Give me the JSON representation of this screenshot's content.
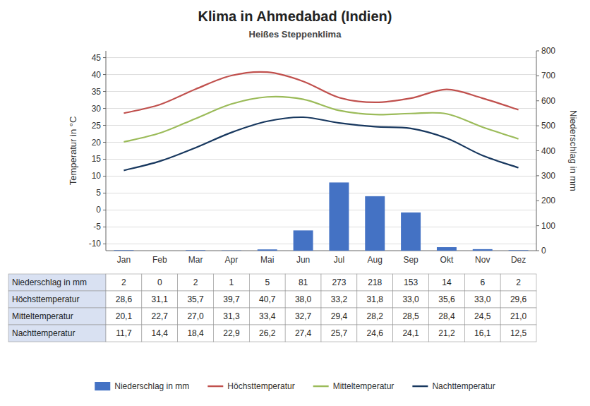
{
  "chart_data": {
    "type": "bar",
    "title": "Klima in Ahmedabad (Indien)",
    "subtitle": "Heißes Steppenklima",
    "categories": [
      "Jan",
      "Feb",
      "Mar",
      "Apr",
      "Mai",
      "Jun",
      "Jul",
      "Aug",
      "Sep",
      "Okt",
      "Nov",
      "Dez"
    ],
    "series": [
      {
        "name": "Niederschlag in mm",
        "type": "bar",
        "axis": "y2",
        "color": "#4472C4",
        "values": [
          2,
          0,
          2,
          1,
          5,
          81,
          273,
          218,
          153,
          14,
          6,
          2
        ]
      },
      {
        "name": "Höchsttemperatur",
        "type": "line",
        "color": "#C0504D",
        "values": [
          28.6,
          31.1,
          35.7,
          39.7,
          40.7,
          38.0,
          33.2,
          31.8,
          33.0,
          35.6,
          33.0,
          29.6
        ],
        "value_labels": [
          "28,6",
          "31,1",
          "35,7",
          "39,7",
          "40,7",
          "38,0",
          "33,2",
          "31,8",
          "33,0",
          "35,6",
          "33,0",
          "29,6"
        ]
      },
      {
        "name": "Mitteltemperatur",
        "type": "line",
        "color": "#9BBB59",
        "values": [
          20.1,
          22.7,
          27.0,
          31.3,
          33.4,
          32.7,
          29.4,
          28.2,
          28.5,
          28.4,
          24.5,
          21.0
        ],
        "value_labels": [
          "20,1",
          "22,7",
          "27,0",
          "31,3",
          "33,4",
          "32,7",
          "29,4",
          "28,2",
          "28,5",
          "28,4",
          "24,5",
          "21,0"
        ]
      },
      {
        "name": "Nachttemperatur",
        "type": "line",
        "color": "#17375E",
        "values": [
          11.7,
          14.4,
          18.4,
          22.9,
          26.2,
          27.4,
          25.7,
          24.6,
          24.1,
          21.2,
          16.1,
          12.5
        ],
        "value_labels": [
          "11,7",
          "14,4",
          "18,4",
          "22,9",
          "26,2",
          "27,4",
          "25,7",
          "24,6",
          "24,1",
          "21,2",
          "16,1",
          "12,5"
        ]
      }
    ],
    "ylabel": "Temperatur in °C",
    "y2label": "Niederschlag in mm",
    "ylim": [
      -12,
      47
    ],
    "yticks": [
      -10,
      -5,
      0,
      5,
      10,
      15,
      20,
      25,
      30,
      35,
      40,
      45
    ],
    "y2lim": [
      0,
      800
    ],
    "y2ticks": [
      0,
      100,
      200,
      300,
      400,
      500,
      600,
      700,
      800
    ],
    "grid": true,
    "legend": "bottom"
  }
}
